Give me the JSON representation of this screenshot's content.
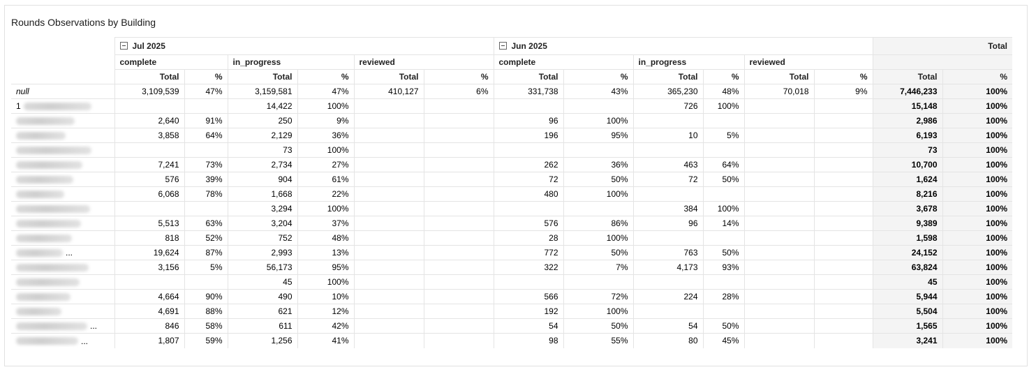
{
  "title": "Rounds Observations by Building",
  "periods": [
    {
      "label": "Jul 2025"
    },
    {
      "label": "Jun 2025"
    }
  ],
  "status_groups": [
    "complete",
    "in_progress",
    "reviewed"
  ],
  "grand_total_label": "Total",
  "sub_headers": {
    "total": "Total",
    "pct": "%"
  },
  "rows": [
    {
      "label": "null",
      "prefix": "",
      "blurred": false,
      "ellipsis": false,
      "cells": [
        "3,109,539",
        "47%",
        "3,159,581",
        "47%",
        "410,127",
        "6%",
        "331,738",
        "43%",
        "365,230",
        "48%",
        "70,018",
        "9%"
      ],
      "total": "7,446,233",
      "total_pct": "100%"
    },
    {
      "label": "",
      "prefix": "1",
      "blurred": true,
      "ellipsis": false,
      "cells": [
        "",
        "",
        "14,422",
        "100%",
        "",
        "",
        "",
        "",
        "726",
        "100%",
        "",
        ""
      ],
      "total": "15,148",
      "total_pct": "100%"
    },
    {
      "label": "",
      "prefix": "",
      "blurred": true,
      "ellipsis": false,
      "cells": [
        "2,640",
        "91%",
        "250",
        "9%",
        "",
        "",
        "96",
        "100%",
        "",
        "",
        "",
        ""
      ],
      "total": "2,986",
      "total_pct": "100%"
    },
    {
      "label": "",
      "prefix": "",
      "blurred": true,
      "ellipsis": false,
      "cells": [
        "3,858",
        "64%",
        "2,129",
        "36%",
        "",
        "",
        "196",
        "95%",
        "10",
        "5%",
        "",
        ""
      ],
      "total": "6,193",
      "total_pct": "100%"
    },
    {
      "label": "",
      "prefix": "",
      "blurred": true,
      "ellipsis": false,
      "cells": [
        "",
        "",
        "73",
        "100%",
        "",
        "",
        "",
        "",
        "",
        "",
        "",
        ""
      ],
      "total": "73",
      "total_pct": "100%"
    },
    {
      "label": "",
      "prefix": "",
      "blurred": true,
      "ellipsis": false,
      "cells": [
        "7,241",
        "73%",
        "2,734",
        "27%",
        "",
        "",
        "262",
        "36%",
        "463",
        "64%",
        "",
        ""
      ],
      "total": "10,700",
      "total_pct": "100%"
    },
    {
      "label": "",
      "prefix": "",
      "blurred": true,
      "ellipsis": false,
      "cells": [
        "576",
        "39%",
        "904",
        "61%",
        "",
        "",
        "72",
        "50%",
        "72",
        "50%",
        "",
        ""
      ],
      "total": "1,624",
      "total_pct": "100%"
    },
    {
      "label": "",
      "prefix": "",
      "blurred": true,
      "ellipsis": false,
      "cells": [
        "6,068",
        "78%",
        "1,668",
        "22%",
        "",
        "",
        "480",
        "100%",
        "",
        "",
        "",
        ""
      ],
      "total": "8,216",
      "total_pct": "100%"
    },
    {
      "label": "",
      "prefix": "",
      "blurred": true,
      "ellipsis": false,
      "cells": [
        "",
        "",
        "3,294",
        "100%",
        "",
        "",
        "",
        "",
        "384",
        "100%",
        "",
        ""
      ],
      "total": "3,678",
      "total_pct": "100%"
    },
    {
      "label": "",
      "prefix": "",
      "blurred": true,
      "ellipsis": false,
      "cells": [
        "5,513",
        "63%",
        "3,204",
        "37%",
        "",
        "",
        "576",
        "86%",
        "96",
        "14%",
        "",
        ""
      ],
      "total": "9,389",
      "total_pct": "100%"
    },
    {
      "label": "",
      "prefix": "",
      "blurred": true,
      "ellipsis": false,
      "cells": [
        "818",
        "52%",
        "752",
        "48%",
        "",
        "",
        "28",
        "100%",
        "",
        "",
        "",
        ""
      ],
      "total": "1,598",
      "total_pct": "100%"
    },
    {
      "label": "",
      "prefix": "",
      "blurred": true,
      "ellipsis": true,
      "cells": [
        "19,624",
        "87%",
        "2,993",
        "13%",
        "",
        "",
        "772",
        "50%",
        "763",
        "50%",
        "",
        ""
      ],
      "total": "24,152",
      "total_pct": "100%"
    },
    {
      "label": "",
      "prefix": "",
      "blurred": true,
      "ellipsis": false,
      "cells": [
        "3,156",
        "5%",
        "56,173",
        "95%",
        "",
        "",
        "322",
        "7%",
        "4,173",
        "93%",
        "",
        ""
      ],
      "total": "63,824",
      "total_pct": "100%"
    },
    {
      "label": "",
      "prefix": "",
      "blurred": true,
      "ellipsis": false,
      "cells": [
        "",
        "",
        "45",
        "100%",
        "",
        "",
        "",
        "",
        "",
        "",
        "",
        ""
      ],
      "total": "45",
      "total_pct": "100%"
    },
    {
      "label": "",
      "prefix": "",
      "blurred": true,
      "ellipsis": false,
      "cells": [
        "4,664",
        "90%",
        "490",
        "10%",
        "",
        "",
        "566",
        "72%",
        "224",
        "28%",
        "",
        ""
      ],
      "total": "5,944",
      "total_pct": "100%"
    },
    {
      "label": "",
      "prefix": "",
      "blurred": true,
      "ellipsis": false,
      "cells": [
        "4,691",
        "88%",
        "621",
        "12%",
        "",
        "",
        "192",
        "100%",
        "",
        "",
        "",
        ""
      ],
      "total": "5,504",
      "total_pct": "100%"
    },
    {
      "label": "",
      "prefix": "",
      "blurred": true,
      "ellipsis": true,
      "cells": [
        "846",
        "58%",
        "611",
        "42%",
        "",
        "",
        "54",
        "50%",
        "54",
        "50%",
        "",
        ""
      ],
      "total": "1,565",
      "total_pct": "100%"
    },
    {
      "label": "",
      "prefix": "",
      "blurred": true,
      "ellipsis": true,
      "cells": [
        "1,807",
        "59%",
        "1,256",
        "41%",
        "",
        "",
        "98",
        "55%",
        "80",
        "45%",
        "",
        ""
      ],
      "total": "3,241",
      "total_pct": "100%"
    }
  ],
  "ellipsis_text": "..."
}
